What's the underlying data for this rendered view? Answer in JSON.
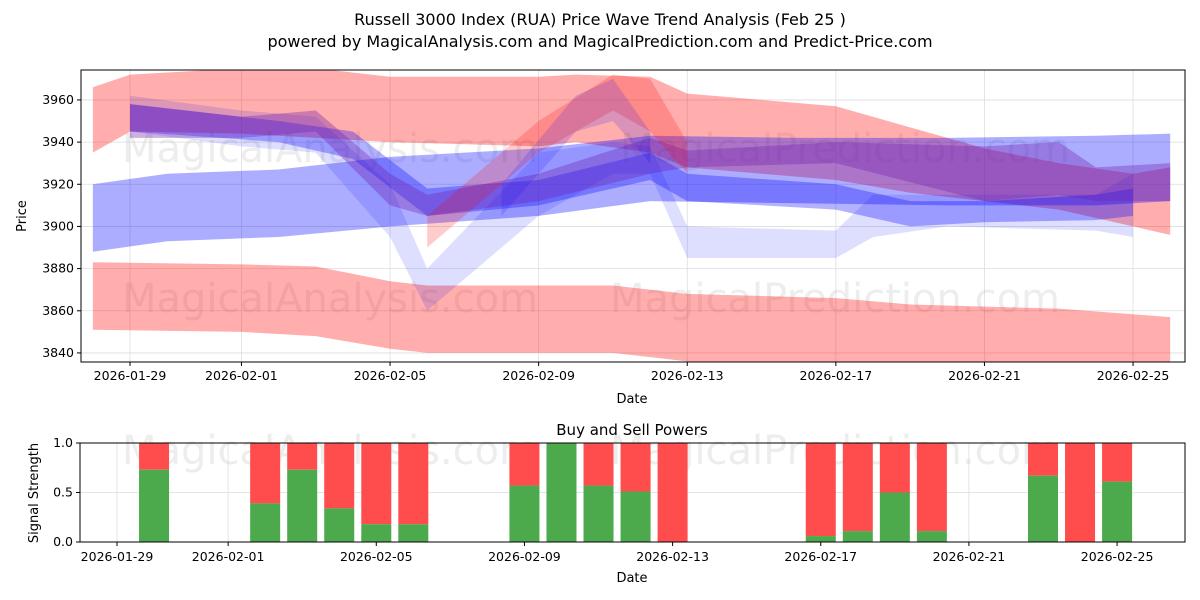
{
  "chart_data": [
    {
      "type": "area",
      "title": "Russell 3000 Index (RUA) Price Wave Trend Analysis (Feb 25 )",
      "subtitle": "powered by MagicalAnalysis.com and MagicalPrediction.com and Predict-Price.com",
      "xlabel": "Date",
      "ylabel": "Price",
      "ylim": [
        3835.7,
        3974.2
      ],
      "xlim": [
        "2026-01-27",
        "2026-02-26"
      ],
      "yticks": [
        3840,
        3860,
        3880,
        3900,
        3920,
        3940,
        3960
      ],
      "xticks": [
        "2026-01-29",
        "2026-02-01",
        "2026-02-05",
        "2026-02-09",
        "2026-02-13",
        "2026-02-17",
        "2026-02-21",
        "2026-02-25"
      ],
      "grid": true,
      "bands": [
        {
          "name": "red-upper",
          "color": "#ff0000",
          "opacity": 0.32,
          "points": [
            [
              "2026-01-28",
              3966,
              3935
            ],
            [
              "2026-01-29",
              3972,
              3945
            ],
            [
              "2026-02-01",
              3975,
              3944
            ],
            [
              "2026-02-03",
              3975,
              3942
            ],
            [
              "2026-02-05",
              3971,
              3940
            ],
            [
              "2026-02-09",
              3971,
              3938
            ],
            [
              "2026-02-10",
              3972,
              3940
            ],
            [
              "2026-02-12",
              3971,
              3935
            ],
            [
              "2026-02-13",
              3963,
              3928
            ],
            [
              "2026-02-17",
              3957,
              3922
            ],
            [
              "2026-02-19",
              3947,
              3916
            ],
            [
              "2026-02-21",
              3937,
              3912
            ],
            [
              "2026-02-23",
              3930,
              3908
            ],
            [
              "2026-02-25",
              3925,
              3900
            ],
            [
              "2026-02-26",
              3928,
              3896
            ]
          ]
        },
        {
          "name": "red-lower",
          "color": "#ff0000",
          "opacity": 0.32,
          "points": [
            [
              "2026-01-28",
              3883,
              3851
            ],
            [
              "2026-02-01",
              3882,
              3850
            ],
            [
              "2026-02-03",
              3881,
              3848
            ],
            [
              "2026-02-05",
              3874,
              3842
            ],
            [
              "2026-02-06",
              3872,
              3840
            ],
            [
              "2026-02-11",
              3872,
              3840
            ],
            [
              "2026-02-13",
              3868,
              3836
            ],
            [
              "2026-02-17",
              3866,
              3834
            ],
            [
              "2026-02-19",
              3863,
              3834
            ],
            [
              "2026-02-23",
              3861,
              3834
            ],
            [
              "2026-02-26",
              3857,
              3834
            ]
          ]
        },
        {
          "name": "blue-wide",
          "color": "#0000ff",
          "opacity": 0.32,
          "points": [
            [
              "2026-01-28",
              3920,
              3888
            ],
            [
              "2026-01-30",
              3925,
              3893
            ],
            [
              "2026-02-02",
              3927,
              3895
            ],
            [
              "2026-02-05",
              3933,
              3900
            ],
            [
              "2026-02-09",
              3937,
              3905
            ],
            [
              "2026-02-12",
              3943,
              3912
            ],
            [
              "2026-02-16",
              3942,
              3911
            ],
            [
              "2026-02-20",
              3942,
              3910
            ],
            [
              "2026-02-24",
              3943,
              3910
            ],
            [
              "2026-02-26",
              3944,
              3912
            ]
          ]
        },
        {
          "name": "blue-dip",
          "color": "#0000ff",
          "opacity": 0.13,
          "points": [
            [
              "2026-01-29",
              3962,
              3945
            ],
            [
              "2026-02-01",
              3955,
              3938
            ],
            [
              "2026-02-03",
              3952,
              3935
            ],
            [
              "2026-02-05",
              3920,
              3895
            ],
            [
              "2026-02-06",
              3880,
              3860
            ],
            [
              "2026-02-09",
              3935,
              3905
            ],
            [
              "2026-02-11",
              3940,
              3925
            ],
            [
              "2026-02-12",
              3938,
              3925
            ],
            [
              "2026-02-13",
              3900,
              3885
            ],
            [
              "2026-02-17",
              3898,
              3885
            ],
            [
              "2026-02-18",
              3915,
              3895
            ],
            [
              "2026-02-20",
              3915,
              3900
            ],
            [
              "2026-02-24",
              3915,
              3898
            ],
            [
              "2026-02-25",
              3925,
              3895
            ]
          ]
        },
        {
          "name": "blue-mid",
          "color": "#0000ff",
          "opacity": 0.3,
          "points": [
            [
              "2026-01-29",
              3958,
              3945
            ],
            [
              "2026-02-02",
              3950,
              3940
            ],
            [
              "2026-02-04",
              3945,
              3932
            ],
            [
              "2026-02-06",
              3918,
              3905
            ],
            [
              "2026-02-09",
              3922,
              3910
            ],
            [
              "2026-02-12",
              3935,
              3922
            ],
            [
              "2026-02-13",
              3925,
              3912
            ],
            [
              "2026-02-17",
              3920,
              3908
            ],
            [
              "2026-02-19",
              3912,
              3900
            ],
            [
              "2026-02-21",
              3912,
              3902
            ],
            [
              "2026-02-24",
              3915,
              3903
            ],
            [
              "2026-02-25",
              3918,
              3905
            ]
          ]
        },
        {
          "name": "purple-cluster",
          "color": "#7020b0",
          "opacity": 0.35,
          "points": [
            [
              "2026-01-29",
              3958,
              3942
            ],
            [
              "2026-02-01",
              3952,
              3942
            ],
            [
              "2026-02-03",
              3955,
              3945
            ],
            [
              "2026-02-05",
              3925,
              3910
            ],
            [
              "2026-02-06",
              3915,
              3905
            ],
            [
              "2026-02-09",
              3925,
              3912
            ],
            [
              "2026-02-12",
              3942,
              3925
            ],
            [
              "2026-02-13",
              3936,
              3928
            ],
            [
              "2026-02-17",
              3940,
              3930
            ],
            [
              "2026-02-21",
              3938,
              3912
            ],
            [
              "2026-02-23",
              3940,
              3915
            ],
            [
              "2026-02-24",
              3928,
              3912
            ],
            [
              "2026-02-26",
              3930,
              3912
            ]
          ]
        },
        {
          "name": "red-peak",
          "color": "#ff0000",
          "opacity": 0.2,
          "points": [
            [
              "2026-02-06",
              3905,
              3890
            ],
            [
              "2026-02-09",
              3950,
              3935
            ],
            [
              "2026-02-11",
              3972,
              3955
            ],
            [
              "2026-02-12",
              3970,
              3945
            ],
            [
              "2026-02-13",
              3940,
              3925
            ]
          ]
        },
        {
          "name": "blue-peak",
          "color": "#0000ff",
          "opacity": 0.15,
          "points": [
            [
              "2026-02-08",
              3920,
              3905
            ],
            [
              "2026-02-10",
              3962,
              3945
            ],
            [
              "2026-02-11",
              3970,
              3950
            ],
            [
              "2026-02-12",
              3945,
              3930
            ]
          ]
        }
      ],
      "watermarks": [
        "MagicalAnalysis.com",
        "MagicalPrediction.com"
      ]
    },
    {
      "type": "bar",
      "title": "Buy and Sell Powers",
      "xlabel": "Date",
      "ylabel": "Signal Strength",
      "ylim": [
        0,
        1
      ],
      "yticks": [
        "0.0",
        "0.5",
        "1.0"
      ],
      "xticks": [
        "2026-01-29",
        "2026-02-01",
        "2026-02-05",
        "2026-02-09",
        "2026-02-13",
        "2026-02-17",
        "2026-02-21",
        "2026-02-25"
      ],
      "series_colors": {
        "buy": "#4caa4c",
        "sell": "#ff4c4c"
      },
      "categories": [
        "2026-01-30",
        "2026-02-02",
        "2026-02-03",
        "2026-02-04",
        "2026-02-05",
        "2026-02-06",
        "2026-02-09",
        "2026-02-10",
        "2026-02-11",
        "2026-02-12",
        "2026-02-13",
        "2026-02-17",
        "2026-02-18",
        "2026-02-19",
        "2026-02-20",
        "2026-02-23",
        "2026-02-24",
        "2026-02-25"
      ],
      "buy": [
        0.73,
        0.39,
        0.73,
        0.34,
        0.18,
        0.18,
        0.57,
        1.0,
        0.57,
        0.51,
        0.0,
        0.06,
        0.11,
        0.5,
        0.11,
        0.67,
        0.0,
        0.61
      ]
    }
  ]
}
